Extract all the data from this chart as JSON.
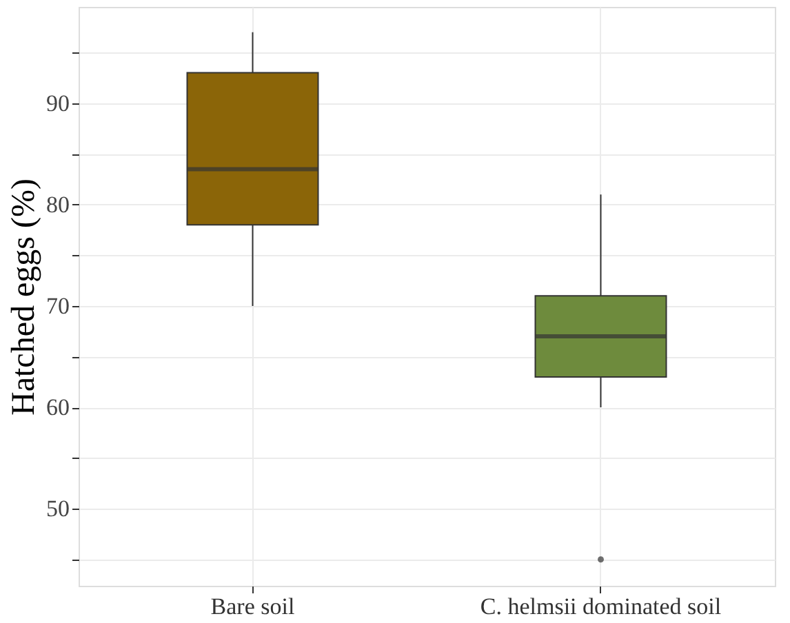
{
  "chart_data": {
    "type": "box",
    "ylabel": "Hatched eggs (%)",
    "categories": [
      "Bare soil",
      "C. helmsii dominated soil"
    ],
    "boxes": [
      {
        "low": 70,
        "q1": 78,
        "median": 83.5,
        "q3": 93,
        "high": 97
      },
      {
        "low": 60,
        "q1": 63,
        "median": 67,
        "q3": 71,
        "high": 81,
        "outliers": [
          45
        ]
      }
    ],
    "colors": [
      "#8b6508",
      "#6e8b3d"
    ],
    "ylim": [
      42.4,
      99.5
    ],
    "yticks": [
      {
        "value": 45,
        "label": null
      },
      50,
      {
        "value": 55,
        "label": null
      },
      60,
      {
        "value": 65,
        "label": null
      },
      70,
      {
        "value": 75,
        "label": null
      },
      80,
      {
        "value": 85,
        "label": null
      },
      90,
      {
        "value": 95,
        "label": null
      }
    ],
    "grid": true
  }
}
